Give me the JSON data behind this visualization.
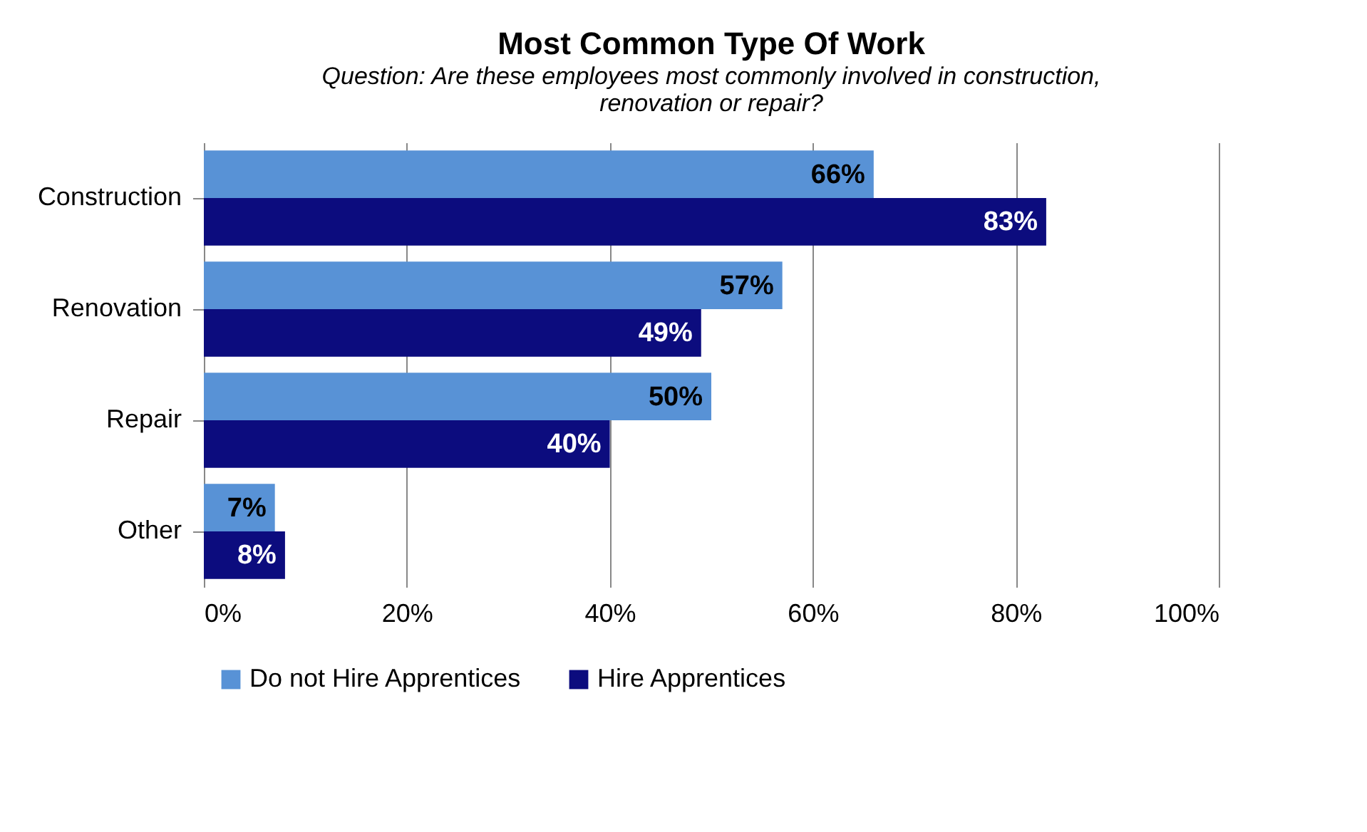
{
  "chart_data": {
    "type": "bar",
    "orientation": "horizontal",
    "title": "Most Common Type Of Work",
    "subtitle": "Question: Are these employees most commonly involved in construction,\nrenovation or repair?",
    "categories": [
      "Construction",
      "Renovation",
      "Repair",
      "Other"
    ],
    "series": [
      {
        "name": "Do not Hire Apprentices",
        "color": "#5892d6",
        "values": [
          66,
          57,
          50,
          7
        ],
        "value_labels": [
          "66%",
          "57%",
          "50%",
          "7%"
        ]
      },
      {
        "name": "Hire Apprentices",
        "color": "#0c0c7e",
        "values": [
          83,
          49,
          40,
          8
        ],
        "value_labels": [
          "83%",
          "49%",
          "40%",
          "8%"
        ]
      }
    ],
    "xlim": [
      0,
      100
    ],
    "xticks": [
      {
        "value": 0,
        "label": "0%"
      },
      {
        "value": 20,
        "label": "20%"
      },
      {
        "value": 40,
        "label": "40%"
      },
      {
        "value": 60,
        "label": "60%"
      },
      {
        "value": 80,
        "label": "80%"
      },
      {
        "value": 100,
        "label": "100%"
      }
    ],
    "grid": "x",
    "legend": "bottom"
  }
}
